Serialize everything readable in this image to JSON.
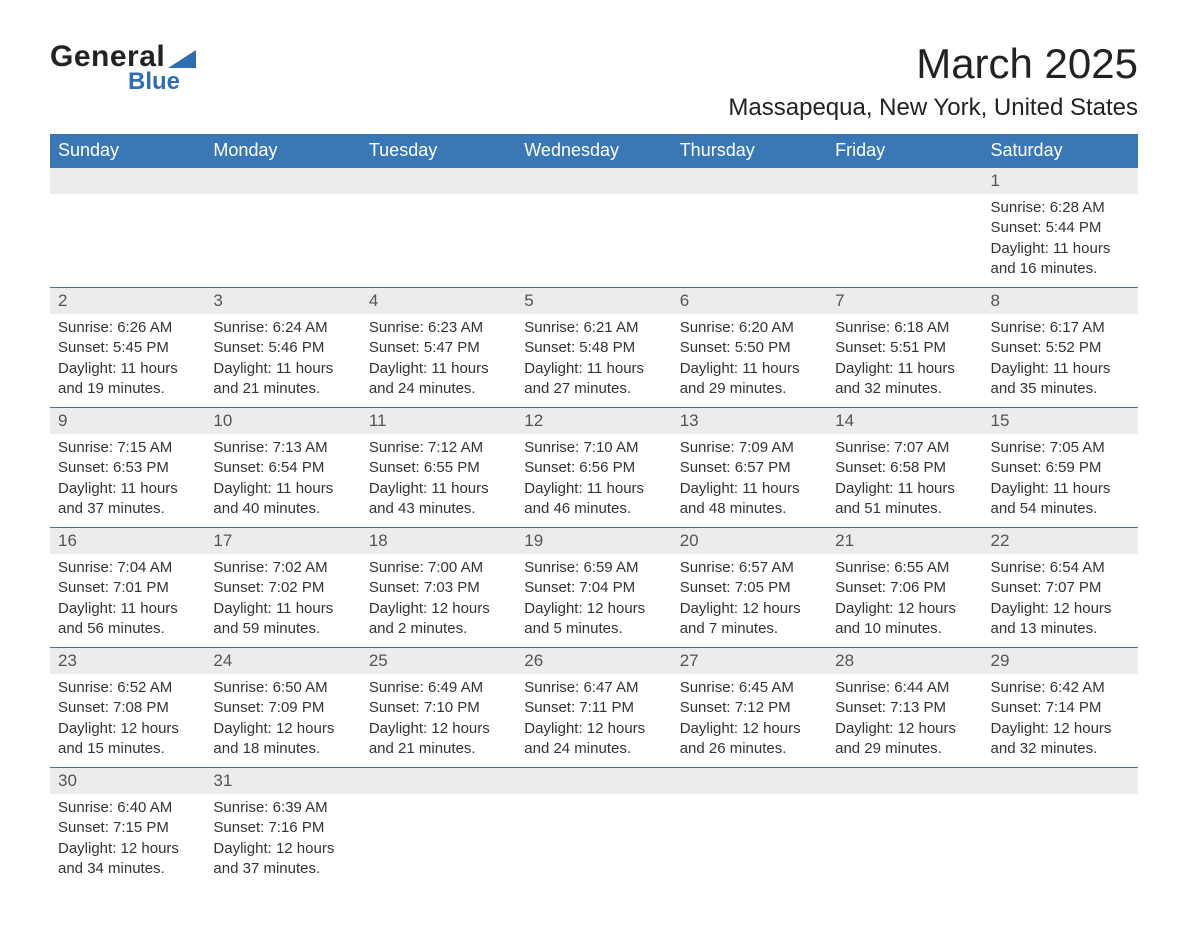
{
  "logo": {
    "word1": "General",
    "word2": "Blue"
  },
  "title": "March 2025",
  "location": "Massapequa, New York, United States",
  "weekday_headers": [
    "Sunday",
    "Monday",
    "Tuesday",
    "Wednesday",
    "Thursday",
    "Friday",
    "Saturday"
  ],
  "colors": {
    "header_bg": "#3a78b5",
    "header_text": "#ffffff",
    "daynum_bg": "#ececec",
    "row_border": "#3a78b5",
    "logo_accent": "#2f6fb0",
    "body_text": "#333333",
    "page_bg": "#ffffff"
  },
  "fonts": {
    "title_pt": 42,
    "location_pt": 24,
    "header_pt": 18,
    "daynum_pt": 17,
    "body_pt": 15
  },
  "weeks": [
    [
      {
        "blank": true
      },
      {
        "blank": true
      },
      {
        "blank": true
      },
      {
        "blank": true
      },
      {
        "blank": true
      },
      {
        "blank": true
      },
      {
        "day": "1",
        "sunrise": "Sunrise: 6:28 AM",
        "sunset": "Sunset: 5:44 PM",
        "dl1": "Daylight: 11 hours",
        "dl2": "and 16 minutes."
      }
    ],
    [
      {
        "day": "2",
        "sunrise": "Sunrise: 6:26 AM",
        "sunset": "Sunset: 5:45 PM",
        "dl1": "Daylight: 11 hours",
        "dl2": "and 19 minutes."
      },
      {
        "day": "3",
        "sunrise": "Sunrise: 6:24 AM",
        "sunset": "Sunset: 5:46 PM",
        "dl1": "Daylight: 11 hours",
        "dl2": "and 21 minutes."
      },
      {
        "day": "4",
        "sunrise": "Sunrise: 6:23 AM",
        "sunset": "Sunset: 5:47 PM",
        "dl1": "Daylight: 11 hours",
        "dl2": "and 24 minutes."
      },
      {
        "day": "5",
        "sunrise": "Sunrise: 6:21 AM",
        "sunset": "Sunset: 5:48 PM",
        "dl1": "Daylight: 11 hours",
        "dl2": "and 27 minutes."
      },
      {
        "day": "6",
        "sunrise": "Sunrise: 6:20 AM",
        "sunset": "Sunset: 5:50 PM",
        "dl1": "Daylight: 11 hours",
        "dl2": "and 29 minutes."
      },
      {
        "day": "7",
        "sunrise": "Sunrise: 6:18 AM",
        "sunset": "Sunset: 5:51 PM",
        "dl1": "Daylight: 11 hours",
        "dl2": "and 32 minutes."
      },
      {
        "day": "8",
        "sunrise": "Sunrise: 6:17 AM",
        "sunset": "Sunset: 5:52 PM",
        "dl1": "Daylight: 11 hours",
        "dl2": "and 35 minutes."
      }
    ],
    [
      {
        "day": "9",
        "sunrise": "Sunrise: 7:15 AM",
        "sunset": "Sunset: 6:53 PM",
        "dl1": "Daylight: 11 hours",
        "dl2": "and 37 minutes."
      },
      {
        "day": "10",
        "sunrise": "Sunrise: 7:13 AM",
        "sunset": "Sunset: 6:54 PM",
        "dl1": "Daylight: 11 hours",
        "dl2": "and 40 minutes."
      },
      {
        "day": "11",
        "sunrise": "Sunrise: 7:12 AM",
        "sunset": "Sunset: 6:55 PM",
        "dl1": "Daylight: 11 hours",
        "dl2": "and 43 minutes."
      },
      {
        "day": "12",
        "sunrise": "Sunrise: 7:10 AM",
        "sunset": "Sunset: 6:56 PM",
        "dl1": "Daylight: 11 hours",
        "dl2": "and 46 minutes."
      },
      {
        "day": "13",
        "sunrise": "Sunrise: 7:09 AM",
        "sunset": "Sunset: 6:57 PM",
        "dl1": "Daylight: 11 hours",
        "dl2": "and 48 minutes."
      },
      {
        "day": "14",
        "sunrise": "Sunrise: 7:07 AM",
        "sunset": "Sunset: 6:58 PM",
        "dl1": "Daylight: 11 hours",
        "dl2": "and 51 minutes."
      },
      {
        "day": "15",
        "sunrise": "Sunrise: 7:05 AM",
        "sunset": "Sunset: 6:59 PM",
        "dl1": "Daylight: 11 hours",
        "dl2": "and 54 minutes."
      }
    ],
    [
      {
        "day": "16",
        "sunrise": "Sunrise: 7:04 AM",
        "sunset": "Sunset: 7:01 PM",
        "dl1": "Daylight: 11 hours",
        "dl2": "and 56 minutes."
      },
      {
        "day": "17",
        "sunrise": "Sunrise: 7:02 AM",
        "sunset": "Sunset: 7:02 PM",
        "dl1": "Daylight: 11 hours",
        "dl2": "and 59 minutes."
      },
      {
        "day": "18",
        "sunrise": "Sunrise: 7:00 AM",
        "sunset": "Sunset: 7:03 PM",
        "dl1": "Daylight: 12 hours",
        "dl2": "and 2 minutes."
      },
      {
        "day": "19",
        "sunrise": "Sunrise: 6:59 AM",
        "sunset": "Sunset: 7:04 PM",
        "dl1": "Daylight: 12 hours",
        "dl2": "and 5 minutes."
      },
      {
        "day": "20",
        "sunrise": "Sunrise: 6:57 AM",
        "sunset": "Sunset: 7:05 PM",
        "dl1": "Daylight: 12 hours",
        "dl2": "and 7 minutes."
      },
      {
        "day": "21",
        "sunrise": "Sunrise: 6:55 AM",
        "sunset": "Sunset: 7:06 PM",
        "dl1": "Daylight: 12 hours",
        "dl2": "and 10 minutes."
      },
      {
        "day": "22",
        "sunrise": "Sunrise: 6:54 AM",
        "sunset": "Sunset: 7:07 PM",
        "dl1": "Daylight: 12 hours",
        "dl2": "and 13 minutes."
      }
    ],
    [
      {
        "day": "23",
        "sunrise": "Sunrise: 6:52 AM",
        "sunset": "Sunset: 7:08 PM",
        "dl1": "Daylight: 12 hours",
        "dl2": "and 15 minutes."
      },
      {
        "day": "24",
        "sunrise": "Sunrise: 6:50 AM",
        "sunset": "Sunset: 7:09 PM",
        "dl1": "Daylight: 12 hours",
        "dl2": "and 18 minutes."
      },
      {
        "day": "25",
        "sunrise": "Sunrise: 6:49 AM",
        "sunset": "Sunset: 7:10 PM",
        "dl1": "Daylight: 12 hours",
        "dl2": "and 21 minutes."
      },
      {
        "day": "26",
        "sunrise": "Sunrise: 6:47 AM",
        "sunset": "Sunset: 7:11 PM",
        "dl1": "Daylight: 12 hours",
        "dl2": "and 24 minutes."
      },
      {
        "day": "27",
        "sunrise": "Sunrise: 6:45 AM",
        "sunset": "Sunset: 7:12 PM",
        "dl1": "Daylight: 12 hours",
        "dl2": "and 26 minutes."
      },
      {
        "day": "28",
        "sunrise": "Sunrise: 6:44 AM",
        "sunset": "Sunset: 7:13 PM",
        "dl1": "Daylight: 12 hours",
        "dl2": "and 29 minutes."
      },
      {
        "day": "29",
        "sunrise": "Sunrise: 6:42 AM",
        "sunset": "Sunset: 7:14 PM",
        "dl1": "Daylight: 12 hours",
        "dl2": "and 32 minutes."
      }
    ],
    [
      {
        "day": "30",
        "sunrise": "Sunrise: 6:40 AM",
        "sunset": "Sunset: 7:15 PM",
        "dl1": "Daylight: 12 hours",
        "dl2": "and 34 minutes."
      },
      {
        "day": "31",
        "sunrise": "Sunrise: 6:39 AM",
        "sunset": "Sunset: 7:16 PM",
        "dl1": "Daylight: 12 hours",
        "dl2": "and 37 minutes."
      },
      {
        "blank": true
      },
      {
        "blank": true
      },
      {
        "blank": true
      },
      {
        "blank": true
      },
      {
        "blank": true
      }
    ]
  ]
}
